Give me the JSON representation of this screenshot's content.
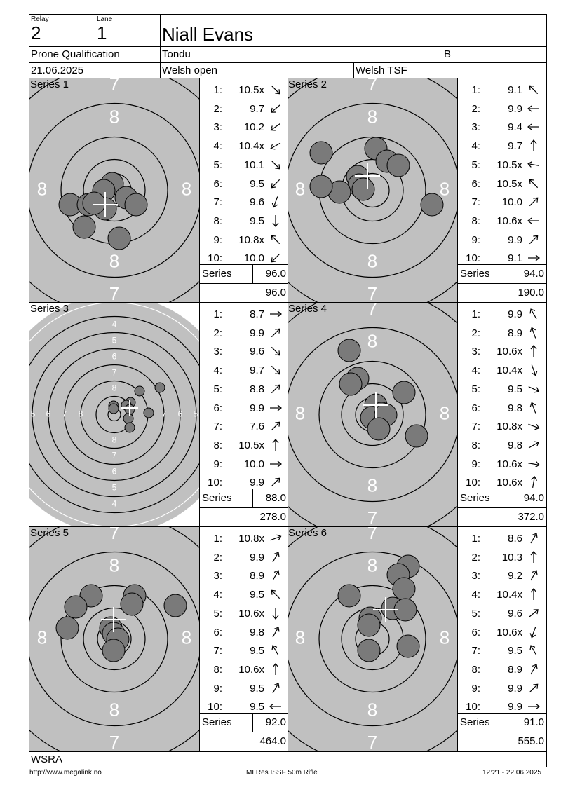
{
  "header": {
    "relay_label": "Relay",
    "relay": "2",
    "lane_label": "Lane",
    "lane": "1",
    "shooter": "Niall Evans",
    "event": "Prone Qualification",
    "club": "Tondu",
    "class": "B",
    "date": "21.06.2025",
    "competition": "Welsh open",
    "organizer": "Welsh TSF"
  },
  "series": [
    {
      "title": "Series 1",
      "shots": [
        {
          "n": "1:",
          "v": "10.5x",
          "dir": 135
        },
        {
          "n": "2:",
          "v": "9.7",
          "dir": 230
        },
        {
          "n": "3:",
          "v": "10.2",
          "dir": 235
        },
        {
          "n": "4:",
          "v": "10.4x",
          "dir": 240
        },
        {
          "n": "5:",
          "v": "10.1",
          "dir": 135
        },
        {
          "n": "6:",
          "v": "9.5",
          "dir": 225
        },
        {
          "n": "7:",
          "v": "9.6",
          "dir": 200
        },
        {
          "n": "8:",
          "v": "9.5",
          "dir": 180
        },
        {
          "n": "9:",
          "v": "10.8x",
          "dir": -45
        },
        {
          "n": "10:",
          "v": "10.0",
          "dir": 225
        }
      ],
      "series_label": "Series",
      "total": "96.0",
      "cumulative": "96.0"
    },
    {
      "title": "Series 2",
      "shots": [
        {
          "n": "1:",
          "v": "9.1",
          "dir": -45
        },
        {
          "n": "2:",
          "v": "9.9",
          "dir": -90
        },
        {
          "n": "3:",
          "v": "9.4",
          "dir": -90
        },
        {
          "n": "4:",
          "v": "9.7",
          "dir": 0
        },
        {
          "n": "5:",
          "v": "10.5x",
          "dir": -80
        },
        {
          "n": "6:",
          "v": "10.5x",
          "dir": -45
        },
        {
          "n": "7:",
          "v": "10.0",
          "dir": 45
        },
        {
          "n": "8:",
          "v": "10.6x",
          "dir": -90
        },
        {
          "n": "9:",
          "v": "9.9",
          "dir": 45
        },
        {
          "n": "10:",
          "v": "9.1",
          "dir": 90
        }
      ],
      "series_label": "Series",
      "total": "94.0",
      "cumulative": "190.0"
    },
    {
      "title": "Series 3",
      "shots": [
        {
          "n": "1:",
          "v": "8.7",
          "dir": 90
        },
        {
          "n": "2:",
          "v": "9.9",
          "dir": 45
        },
        {
          "n": "3:",
          "v": "9.6",
          "dir": 135
        },
        {
          "n": "4:",
          "v": "9.7",
          "dir": 135
        },
        {
          "n": "5:",
          "v": "8.8",
          "dir": 45
        },
        {
          "n": "6:",
          "v": "9.9",
          "dir": 90
        },
        {
          "n": "7:",
          "v": "7.6",
          "dir": 45
        },
        {
          "n": "8:",
          "v": "10.5x",
          "dir": 0
        },
        {
          "n": "9:",
          "v": "10.0",
          "dir": 90
        },
        {
          "n": "10:",
          "v": "9.9",
          "dir": 45
        }
      ],
      "series_label": "Series",
      "total": "88.0",
      "cumulative": "278.0"
    },
    {
      "title": "Series 4",
      "shots": [
        {
          "n": "1:",
          "v": "9.9",
          "dir": -30
        },
        {
          "n": "2:",
          "v": "8.9",
          "dir": -20
        },
        {
          "n": "3:",
          "v": "10.6x",
          "dir": 0
        },
        {
          "n": "4:",
          "v": "10.4x",
          "dir": 160
        },
        {
          "n": "5:",
          "v": "9.5",
          "dir": 115
        },
        {
          "n": "6:",
          "v": "9.8",
          "dir": -20
        },
        {
          "n": "7:",
          "v": "10.8x",
          "dir": 110
        },
        {
          "n": "8:",
          "v": "9.8",
          "dir": 60
        },
        {
          "n": "9:",
          "v": "10.6x",
          "dir": 100
        },
        {
          "n": "10:",
          "v": "10.6x",
          "dir": 10
        }
      ],
      "series_label": "Series",
      "total": "94.0",
      "cumulative": "372.0"
    },
    {
      "title": "Series 5",
      "shots": [
        {
          "n": "1:",
          "v": "10.8x",
          "dir": 70
        },
        {
          "n": "2:",
          "v": "9.9",
          "dir": 30
        },
        {
          "n": "3:",
          "v": "8.9",
          "dir": 30
        },
        {
          "n": "4:",
          "v": "9.5",
          "dir": -45
        },
        {
          "n": "5:",
          "v": "10.6x",
          "dir": 180
        },
        {
          "n": "6:",
          "v": "9.8",
          "dir": 30
        },
        {
          "n": "7:",
          "v": "9.5",
          "dir": -30
        },
        {
          "n": "8:",
          "v": "10.6x",
          "dir": 0
        },
        {
          "n": "9:",
          "v": "9.5",
          "dir": 30
        },
        {
          "n": "10:",
          "v": "9.5",
          "dir": -90
        }
      ],
      "series_label": "Series",
      "total": "92.0",
      "cumulative": "464.0"
    },
    {
      "title": "Series 6",
      "shots": [
        {
          "n": "1:",
          "v": "8.6",
          "dir": 30
        },
        {
          "n": "2:",
          "v": "10.3",
          "dir": 0
        },
        {
          "n": "3:",
          "v": "9.2",
          "dir": 30
        },
        {
          "n": "4:",
          "v": "10.4x",
          "dir": 0
        },
        {
          "n": "5:",
          "v": "9.6",
          "dir": 50
        },
        {
          "n": "6:",
          "v": "10.6x",
          "dir": 200
        },
        {
          "n": "7:",
          "v": "9.5",
          "dir": -30
        },
        {
          "n": "8:",
          "v": "8.9",
          "dir": 30
        },
        {
          "n": "9:",
          "v": "9.9",
          "dir": 45
        },
        {
          "n": "10:",
          "v": "9.9",
          "dir": 90
        }
      ],
      "series_label": "Series",
      "total": "91.0",
      "cumulative": "555.0"
    }
  ],
  "footer": {
    "association": "WSRA",
    "url": "http://www.megalink.no",
    "software": "MLRes ISSF 50m Rifle",
    "printed": "12:21 - 22.06.2025"
  },
  "target_ring_labels": {
    "outer": "7",
    "mid": "8",
    "zoom": [
      "4",
      "5",
      "6",
      "7",
      "8"
    ]
  }
}
